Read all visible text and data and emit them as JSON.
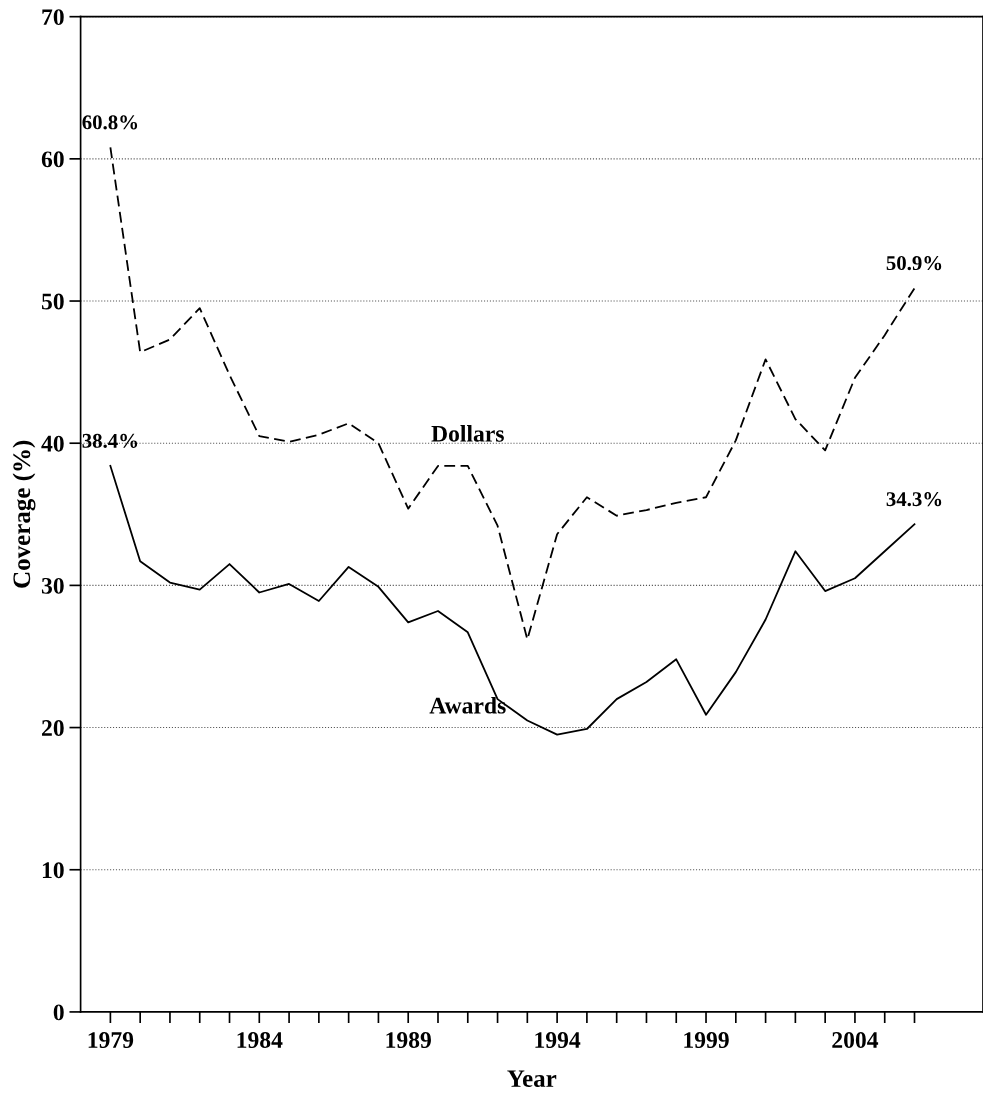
{
  "chart_data": {
    "type": "line",
    "xlabel": "Year",
    "ylabel": "Coverage (%)",
    "x": [
      1979,
      1980,
      1981,
      1982,
      1983,
      1984,
      1985,
      1986,
      1987,
      1988,
      1989,
      1990,
      1991,
      1992,
      1993,
      1994,
      1995,
      1996,
      1997,
      1998,
      1999,
      2000,
      2001,
      2002,
      2003,
      2004,
      2005,
      2006
    ],
    "series": [
      {
        "name": "Dollars",
        "color": "#000000",
        "line_style": "dashed",
        "values": [
          60.8,
          46.4,
          47.3,
          49.5,
          44.8,
          40.5,
          40.1,
          40.6,
          41.4,
          40.0,
          35.4,
          38.4,
          38.4,
          34.2,
          26.2,
          33.6,
          36.2,
          34.9,
          35.3,
          35.8,
          36.2,
          40.2,
          45.9,
          41.7,
          39.5,
          44.6,
          47.6,
          50.9
        ],
        "value_labels": [
          "60.8%",
          null,
          null,
          null,
          null,
          null,
          null,
          null,
          null,
          null,
          null,
          null,
          null,
          null,
          null,
          null,
          null,
          null,
          null,
          null,
          null,
          null,
          null,
          null,
          null,
          null,
          null,
          "50.9%"
        ]
      },
      {
        "name": "Awards",
        "color": "#000000",
        "line_style": "solid",
        "values": [
          38.4,
          31.7,
          30.2,
          29.7,
          31.5,
          29.5,
          30.1,
          28.9,
          31.3,
          29.9,
          27.4,
          28.2,
          26.7,
          22.0,
          20.5,
          19.5,
          19.9,
          22.0,
          23.2,
          24.8,
          20.9,
          23.9,
          27.6,
          32.4,
          29.6,
          30.5,
          32.4,
          34.3
        ],
        "value_labels": [
          "38.4%",
          null,
          null,
          null,
          null,
          null,
          null,
          null,
          null,
          null,
          null,
          null,
          null,
          null,
          null,
          null,
          null,
          null,
          null,
          null,
          null,
          null,
          null,
          null,
          null,
          null,
          null,
          "34.3%"
        ]
      }
    ],
    "xlim": [
      1978,
      2008.3
    ],
    "ylim": [
      0,
      70
    ],
    "xticks": [
      1979,
      {
        "value": 1980,
        "label": null
      },
      {
        "value": 1981,
        "label": null
      },
      {
        "value": 1982,
        "label": null
      },
      {
        "value": 1983,
        "label": null
      },
      1984,
      {
        "value": 1985,
        "label": null
      },
      {
        "value": 1986,
        "label": null
      },
      {
        "value": 1987,
        "label": null
      },
      {
        "value": 1988,
        "label": null
      },
      1989,
      {
        "value": 1990,
        "label": null
      },
      {
        "value": 1991,
        "label": null
      },
      {
        "value": 1992,
        "label": null
      },
      {
        "value": 1993,
        "label": null
      },
      1994,
      {
        "value": 1995,
        "label": null
      },
      {
        "value": 1996,
        "label": null
      },
      {
        "value": 1997,
        "label": null
      },
      {
        "value": 1998,
        "label": null
      },
      1999,
      {
        "value": 2000,
        "label": null
      },
      {
        "value": 2001,
        "label": null
      },
      {
        "value": 2002,
        "label": null
      },
      {
        "value": 2003,
        "label": null
      },
      2004,
      {
        "value": 2005,
        "label": null
      },
      {
        "value": 2006,
        "label": null
      }
    ],
    "yticks": [
      0,
      10,
      20,
      30,
      40,
      50,
      60,
      70
    ],
    "grid": "y",
    "marker": "none",
    "legend": false
  }
}
